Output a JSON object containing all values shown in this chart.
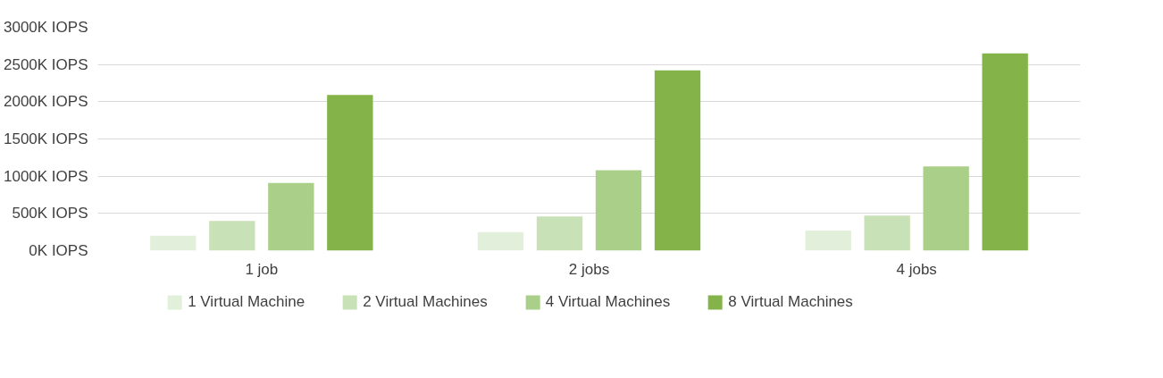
{
  "chart_data": {
    "type": "bar",
    "categories": [
      "1 job",
      "2 jobs",
      "4 jobs"
    ],
    "series": [
      {
        "name": "1 Virtual Machine",
        "color": "#e2efda",
        "values": [
          200,
          250,
          270
        ]
      },
      {
        "name": "2 Virtual Machines",
        "color": "#c9e1b6",
        "values": [
          400,
          460,
          470
        ]
      },
      {
        "name": "4 Virtual Machines",
        "color": "#a9cf88",
        "values": [
          910,
          1080,
          1130
        ]
      },
      {
        "name": "8 Virtual Machines",
        "color": "#84b449",
        "values": [
          2090,
          2420,
          2650
        ]
      }
    ],
    "ylim": [
      0,
      3000
    ],
    "yticks": [
      {
        "value": 0,
        "label": "0K IOPS"
      },
      {
        "value": 500,
        "label": "500K IOPS"
      },
      {
        "value": 1000,
        "label": "1000K IOPS"
      },
      {
        "value": 1500,
        "label": "1500K IOPS"
      },
      {
        "value": 2000,
        "label": "2000K IOPS"
      },
      {
        "value": 2500,
        "label": "2500K IOPS"
      },
      {
        "value": 3000,
        "label": "3000K IOPS"
      }
    ],
    "grid": "y",
    "legend": "bottom"
  }
}
